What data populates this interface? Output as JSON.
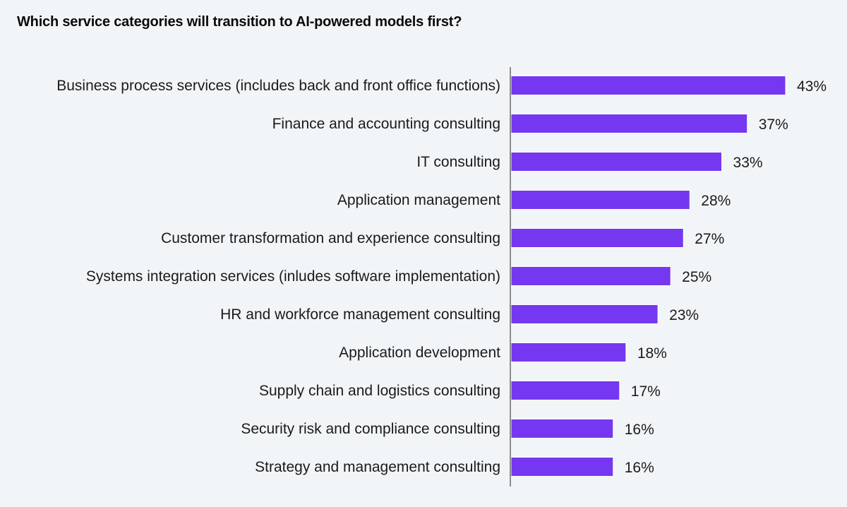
{
  "chart_data": {
    "type": "bar",
    "orientation": "horizontal",
    "title": "Which service categories will transition to AI-powered models first?",
    "xlabel": "",
    "ylabel": "",
    "xlim": [
      0,
      45
    ],
    "grid": false,
    "unit": "%",
    "bar_color": "#7537f0",
    "categories": [
      "Business process services (includes back and front office functions)",
      "Finance and accounting consulting",
      "IT consulting",
      "Application management",
      "Customer transformation and experience consulting",
      "Systems integration services (inludes software implementation)",
      "HR and workforce management consulting",
      "Application development",
      "Supply chain and logistics consulting",
      "Security risk and compliance consulting",
      "Strategy and management consulting"
    ],
    "values": [
      43,
      37,
      33,
      28,
      27,
      25,
      23,
      18,
      17,
      16,
      16
    ],
    "data_labels": [
      "43%",
      "37%",
      "33%",
      "28%",
      "27%",
      "25%",
      "23%",
      "18%",
      "17%",
      "16%",
      "16%"
    ]
  }
}
